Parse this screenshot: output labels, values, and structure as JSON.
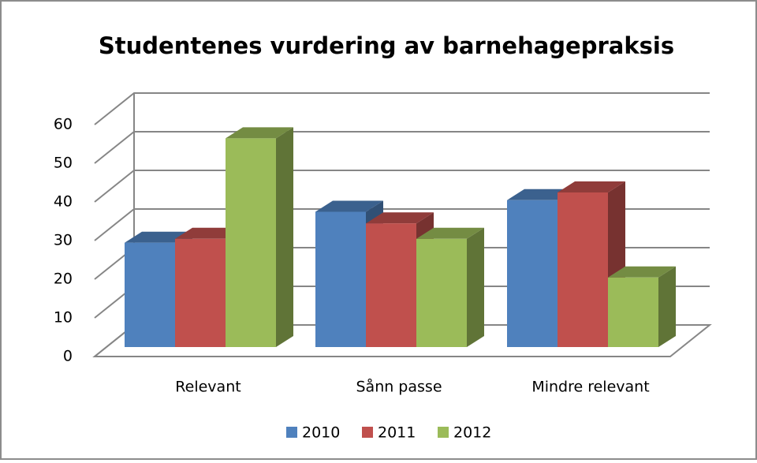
{
  "chart_data": {
    "type": "bar3d",
    "title": "Studentenes vurdering av barnehagepraksis",
    "categories": [
      "Relevant",
      "Sånn passe",
      "Mindre relevant"
    ],
    "series": [
      {
        "name": "2010",
        "color": "#4f81bd",
        "values": [
          27,
          35,
          38
        ]
      },
      {
        "name": "2011",
        "color": "#c0504d",
        "values": [
          28,
          32,
          40
        ]
      },
      {
        "name": "2012",
        "color": "#9bbb59",
        "values": [
          54,
          28,
          18
        ]
      }
    ],
    "ylim": [
      0,
      60
    ],
    "yticks": [
      0,
      10,
      20,
      30,
      40,
      50,
      60
    ],
    "grid": true,
    "legend": "bottom"
  }
}
